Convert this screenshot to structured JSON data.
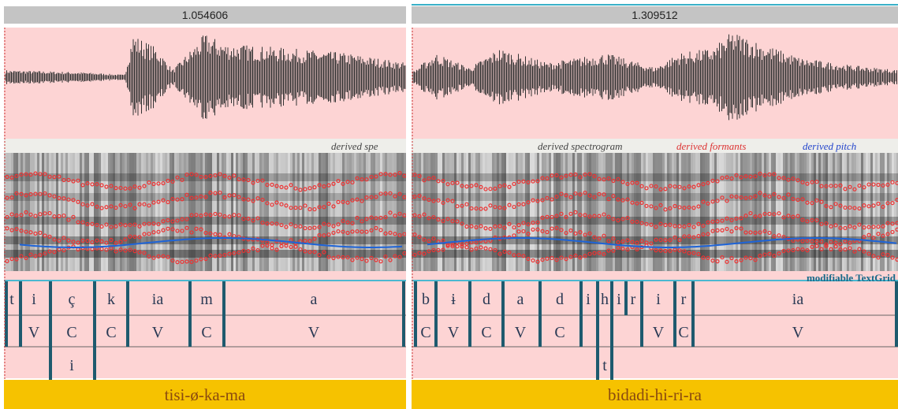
{
  "panels": [
    {
      "duration": "1.054606",
      "legend": [
        "derived spe"
      ],
      "tiers": [
        [
          "t",
          "i",
          "ç",
          "k",
          "ia",
          "m",
          "a"
        ],
        [
          "V",
          "C",
          "C",
          "V",
          "C",
          "V"
        ],
        [
          "i"
        ]
      ],
      "word": "tisi-ø-ka-ma"
    },
    {
      "duration": "1.309512",
      "legend": [
        "derived spectrogram",
        "derived formants",
        "derived pitch"
      ],
      "textgrid": "modifiable TextGrid",
      "tiers": [
        [
          "b",
          "ɨ",
          "d",
          "a",
          "d",
          "i",
          "h",
          "i",
          "r",
          "i",
          "r",
          "ia"
        ],
        [
          "C",
          "V",
          "C",
          "V",
          "C",
          "V",
          "C",
          "V"
        ],
        [
          "t"
        ]
      ],
      "word": "bidadi-hi-ri-ra"
    }
  ]
}
